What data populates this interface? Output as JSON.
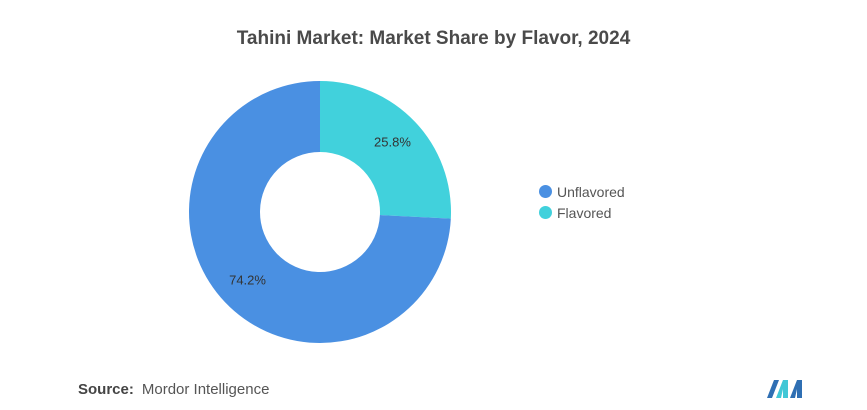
{
  "title": "Tahini Market: Market Share by Flavor, 2024",
  "source": {
    "label": "Source:",
    "value": "Mordor Intelligence"
  },
  "chart_data": {
    "type": "pie",
    "variant": "donut",
    "title": "Tahini Market: Market Share by Flavor, 2024",
    "legend_position": "right",
    "slices": [
      {
        "label": "Flavored",
        "value": 25.8,
        "display": "25.8%",
        "color": "#41d1dc"
      },
      {
        "label": "Unflavored",
        "value": 74.2,
        "display": "74.2%",
        "color": "#4a90e2"
      }
    ]
  },
  "legend": [
    {
      "label": "Unflavored",
      "color": "#4a90e2"
    },
    {
      "label": "Flavored",
      "color": "#41d1dc"
    }
  ],
  "logo": {
    "name": "mordor-intelligence-logo",
    "colors": [
      "#2f6fb3",
      "#41c7d6"
    ]
  }
}
